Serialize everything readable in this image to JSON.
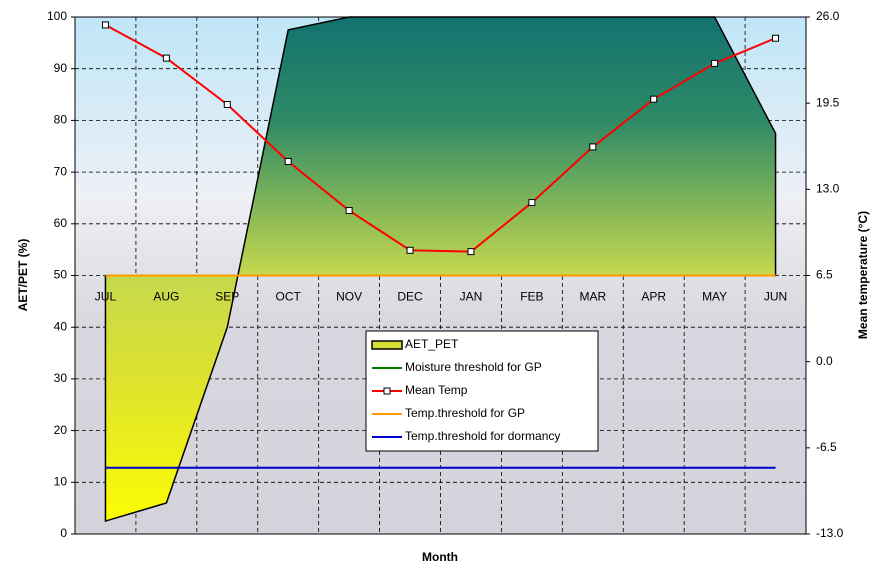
{
  "chart_data": {
    "type": "area-line",
    "xlabel": "Month",
    "ylabel": "AET/PET (%)",
    "y2label": "Mean temperature (°C)",
    "categories": [
      "JUL",
      "AUG",
      "SEP",
      "OCT",
      "NOV",
      "DEC",
      "JAN",
      "FEB",
      "MAR",
      "APR",
      "MAY",
      "JUN"
    ],
    "ylim": [
      0,
      100
    ],
    "yticks": [
      0,
      10,
      20,
      30,
      40,
      50,
      60,
      70,
      80,
      90,
      100
    ],
    "y2lim": [
      -13,
      26
    ],
    "y2ticks": [
      {
        "value": -13,
        "label": "-13.0"
      },
      -6.5,
      {
        "value": 0,
        "label": "0.0"
      },
      6.5,
      {
        "value": 13,
        "label": "13.0"
      },
      19.5,
      {
        "value": 26,
        "label": "26.0"
      }
    ],
    "grid": true,
    "series": [
      {
        "name": "AET_PET",
        "kind": "area",
        "color": "#1a7a76",
        "values": [
          2.5,
          6,
          40,
          97.5,
          100,
          100,
          100,
          100,
          100,
          100,
          100,
          77.5
        ]
      },
      {
        "name": "Moisture threshold for GP",
        "kind": "line",
        "color": "#008000",
        "values": [
          50,
          50,
          50,
          50,
          50,
          50,
          50,
          50,
          50,
          50,
          50,
          50
        ]
      },
      {
        "name": "Mean Temp",
        "kind": "line",
        "marker": true,
        "axis": "y2",
        "color": "#ff0000",
        "values": [
          25.4,
          22.9,
          19.4,
          15.1,
          11.4,
          8.4,
          8.3,
          12.0,
          16.2,
          19.8,
          22.5,
          24.4
        ]
      },
      {
        "name": "Temp.threshold for GP",
        "kind": "line",
        "axis": "y2",
        "color": "#ff9900",
        "values": [
          6.5,
          6.5,
          6.5,
          6.5,
          6.5,
          6.5,
          6.5,
          6.5,
          6.5,
          6.5,
          6.5,
          6.5
        ]
      },
      {
        "name": "Temp.threshold for dormancy",
        "kind": "line",
        "axis": "y2",
        "color": "#0000cc",
        "values": [
          -8,
          -8,
          -8,
          -8,
          -8,
          -8,
          -8,
          -8,
          -8,
          -8,
          -8,
          -8
        ]
      }
    ]
  }
}
